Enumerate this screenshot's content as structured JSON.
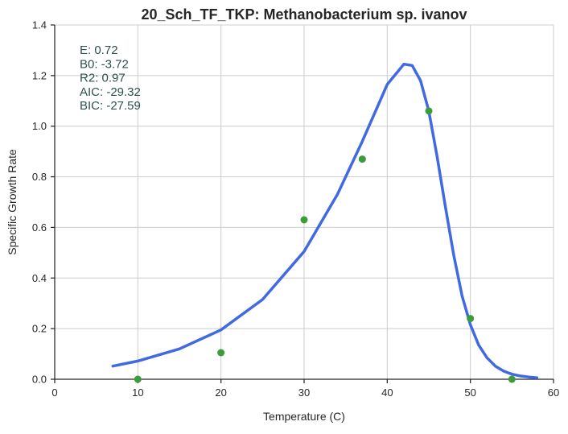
{
  "chart_data": {
    "type": "scatter",
    "title": "20_Sch_TF_TKP: Methanobacterium sp. ivanov",
    "xlabel": "Temperature (C)",
    "ylabel": "Specific Growth Rate",
    "xlim": [
      0,
      60
    ],
    "ylim": [
      0,
      1.4
    ],
    "xticks": [
      "0",
      "10",
      "20",
      "30",
      "40",
      "50",
      "60"
    ],
    "yticks": [
      "0.0",
      "0.2",
      "0.4",
      "0.6",
      "0.8",
      "1.0",
      "1.2",
      "1.4"
    ],
    "grid": true,
    "points": {
      "x": [
        10,
        20,
        30,
        37,
        45,
        50,
        55
      ],
      "y": [
        0.0,
        0.105,
        0.63,
        0.87,
        1.06,
        0.24,
        0.0
      ],
      "color": "#3a9d3a"
    },
    "fit": {
      "color": "#4169e1",
      "x": [
        7,
        10,
        15,
        20,
        25,
        30,
        34,
        37,
        40,
        42,
        43,
        44,
        45,
        46,
        47,
        48,
        49,
        50,
        51,
        52,
        53,
        54,
        55,
        56,
        57,
        58
      ],
      "y": [
        0.052,
        0.072,
        0.12,
        0.195,
        0.315,
        0.505,
        0.73,
        0.94,
        1.165,
        1.245,
        1.24,
        1.18,
        1.06,
        0.88,
        0.68,
        0.49,
        0.33,
        0.215,
        0.135,
        0.085,
        0.052,
        0.032,
        0.02,
        0.013,
        0.009,
        0.006
      ]
    },
    "stats": [
      "E:  0.72",
      "B0:  -3.72",
      "R2:  0.97",
      "AIC: -29.32",
      "BIC: -27.59"
    ]
  }
}
